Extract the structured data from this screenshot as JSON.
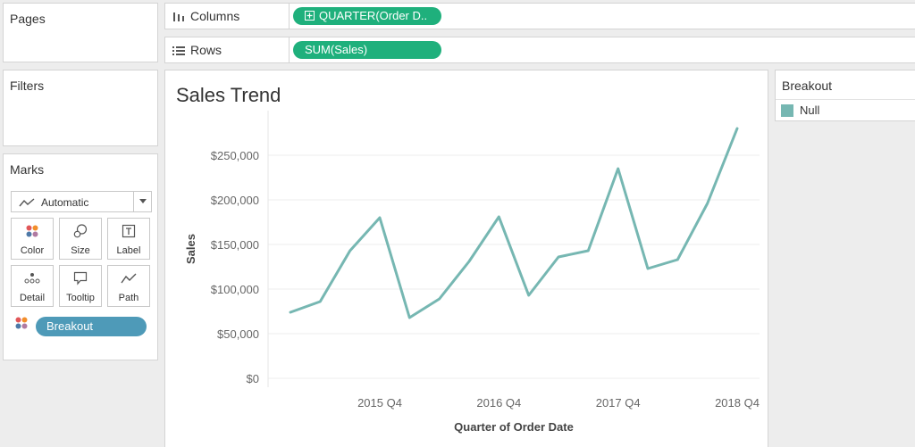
{
  "panels": {
    "pages_title": "Pages",
    "filters_title": "Filters",
    "marks_title": "Marks"
  },
  "marks": {
    "type_label": "Automatic",
    "buttons": [
      {
        "label": "Color",
        "icon": "color-dots-icon"
      },
      {
        "label": "Size",
        "icon": "size-shapes-icon"
      },
      {
        "label": "Label",
        "icon": "label-t-icon"
      },
      {
        "label": "Detail",
        "icon": "detail-dots-icon"
      },
      {
        "label": "Tooltip",
        "icon": "tooltip-bubble-icon"
      },
      {
        "label": "Path",
        "icon": "path-line-icon"
      }
    ],
    "breakout_pill": "Breakout"
  },
  "shelves": {
    "columns_label": "Columns",
    "columns_pill": "QUARTER(Order D..",
    "rows_label": "Rows",
    "rows_pill": "SUM(Sales)"
  },
  "legend": {
    "title": "Breakout",
    "items": [
      {
        "label": "Null",
        "color": "#76b7b2"
      }
    ]
  },
  "colors": {
    "line": "#76b7b2",
    "green_pill": "#1fb07c",
    "blue_pill": "#4e9ab8"
  },
  "chart_data": {
    "type": "line",
    "title": "Sales Trend",
    "xlabel": "Quarter of Order Date",
    "ylabel": "Sales",
    "x": [
      "2015 Q1",
      "2015 Q2",
      "2015 Q3",
      "2015 Q4",
      "2016 Q1",
      "2016 Q2",
      "2016 Q3",
      "2016 Q4",
      "2017 Q1",
      "2017 Q2",
      "2017 Q3",
      "2017 Q4",
      "2018 Q1",
      "2018 Q2",
      "2018 Q3",
      "2018 Q4"
    ],
    "x_tick_labels": [
      "2015 Q4",
      "2016 Q4",
      "2017 Q4",
      "2018 Q4"
    ],
    "y_ticks": [
      0,
      50000,
      100000,
      150000,
      200000,
      250000
    ],
    "y_tick_labels": [
      "$0",
      "$50,000",
      "$100,000",
      "$150,000",
      "$200,000",
      "$250,000"
    ],
    "ylim": [
      0,
      290000
    ],
    "series": [
      {
        "name": "Null",
        "values": [
          74000,
          86000,
          143000,
          180000,
          68000,
          89000,
          131000,
          181000,
          93000,
          136000,
          143000,
          235000,
          123000,
          133000,
          196000,
          280000
        ]
      }
    ],
    "grid": true,
    "legend": "right"
  }
}
